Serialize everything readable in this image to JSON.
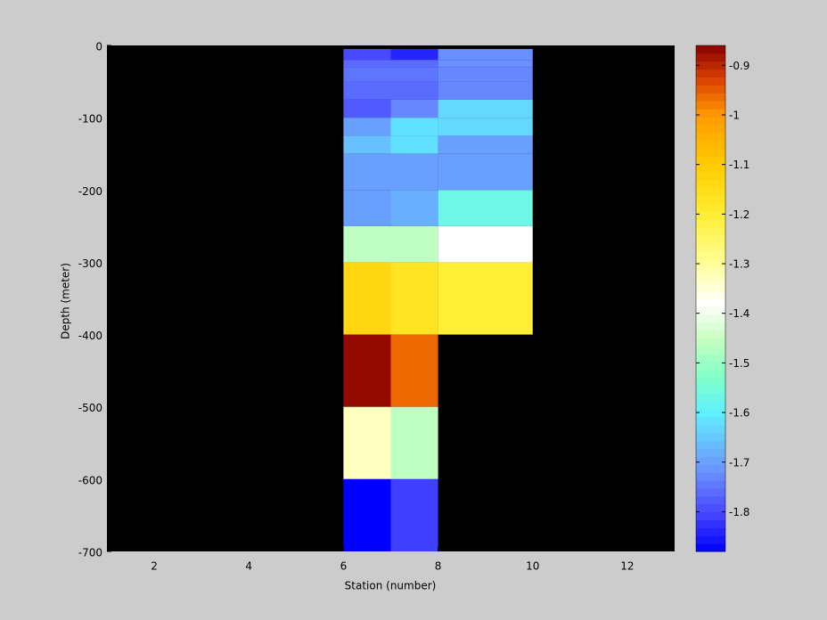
{
  "chart_data": {
    "type": "heatmap",
    "xlabel": "Station (number)",
    "ylabel": "Depth (meter)",
    "x_edges": [
      6,
      7,
      8,
      10
    ],
    "y_edges": [
      -5,
      -20,
      -30,
      -50,
      -75,
      -100,
      -125,
      -150,
      -200,
      -250,
      -300,
      -400,
      -500,
      -600,
      -700
    ],
    "values": [
      [
        -1.8,
        -1.84,
        -1.72
      ],
      [
        -1.76,
        -1.76,
        -1.72
      ],
      [
        -1.75,
        -1.75,
        -1.73
      ],
      [
        -1.76,
        -1.76,
        -1.73
      ],
      [
        -1.78,
        -1.73,
        -1.63
      ],
      [
        -1.7,
        -1.62,
        -1.63
      ],
      [
        -1.66,
        -1.62,
        -1.7
      ],
      [
        -1.7,
        -1.7,
        -1.7
      ],
      [
        -1.7,
        -1.68,
        -1.57
      ],
      [
        -1.46,
        -1.46,
        -1.38
      ],
      [
        -1.13,
        -1.17,
        -1.2
      ],
      [
        -0.87,
        -0.96,
        null
      ],
      [
        -1.33,
        -1.46,
        null
      ],
      [
        -1.88,
        -1.81,
        null
      ]
    ],
    "xlim": [
      1,
      13
    ],
    "xticks": [
      2,
      4,
      6,
      8,
      10,
      12
    ],
    "ylim": [
      -700,
      0
    ],
    "yticks": [
      0,
      -100,
      -200,
      -300,
      -400,
      -500,
      -600,
      -700
    ],
    "clim": [
      -1.88,
      -0.86
    ],
    "cticks": [
      -0.9,
      -1,
      -1.1,
      -1.2,
      -1.3,
      -1.4,
      -1.5,
      -1.6,
      -1.7,
      -1.8
    ],
    "background": "#000000",
    "colormap": [
      [
        -1.88,
        "#0000ff"
      ],
      [
        -1.8,
        "#4848ff"
      ],
      [
        -1.72,
        "#6a90ff"
      ],
      [
        -1.65,
        "#66c8ff"
      ],
      [
        -1.6,
        "#60f0ff"
      ],
      [
        -1.53,
        "#80ffc8"
      ],
      [
        -1.45,
        "#c8ffc0"
      ],
      [
        -1.38,
        "#ffffff"
      ],
      [
        -1.3,
        "#ffff99"
      ],
      [
        -1.2,
        "#ffee33"
      ],
      [
        -1.1,
        "#ffcc00"
      ],
      [
        -1.0,
        "#ff9900"
      ],
      [
        -0.93,
        "#dd4400"
      ],
      [
        -0.86,
        "#880000"
      ]
    ]
  }
}
